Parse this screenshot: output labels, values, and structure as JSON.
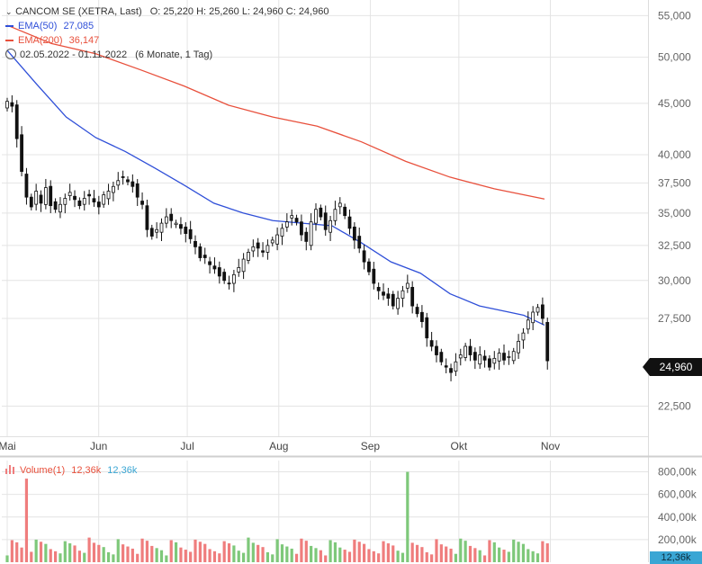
{
  "header": {
    "instrument": "CANCOM SE (XETRA, Last)",
    "ohlc": "O: 25,220  H: 25,260  L: 24,960  C: 24,960",
    "ema50_label": "EMA(50)",
    "ema50_value": "27,085",
    "ema200_label": "EMA(200)",
    "ema200_value": "36,147",
    "period": "02.05.2022 - 01.11.2022",
    "period_detail": "(6 Monate, 1 Tag)"
  },
  "volume_header": {
    "label": "Volume(1)",
    "value1": "12,36k",
    "value2": "12,36k"
  },
  "price_tag": "24,960",
  "volume_tag": "12,36k",
  "colors": {
    "up": "#ffffff",
    "down": "#111111",
    "ema50": "#2f4fd8",
    "ema200": "#e8503c",
    "vol_up": "#7ec87a",
    "vol_down": "#ef7d7d",
    "grid": "#e4e4e4",
    "vol_value2": "#3aa6d4"
  },
  "chart_data": [
    {
      "type": "candlestick",
      "title": "CANCOM SE (XETRA, Last)",
      "scale": "log",
      "ylim": [
        21000,
        57000
      ],
      "x_months": [
        "Mai",
        "Jun",
        "Jul",
        "Aug",
        "Sep",
        "Okt",
        "Nov"
      ],
      "x_month_days": [
        0,
        31,
        61,
        92,
        123,
        153,
        184
      ],
      "y_ticks": [
        22500,
        27500,
        30000,
        32500,
        35000,
        37500,
        40000,
        45000,
        50000,
        55000
      ],
      "y_tick_labels": [
        "22,500",
        "27,500",
        "30,000",
        "32,500",
        "35,000",
        "37,500",
        "40,000",
        "45,000",
        "50,000",
        "55,000"
      ],
      "closes": [
        45200,
        44700,
        41500,
        38500,
        36300,
        35500,
        36800,
        35800,
        37100,
        35600,
        35300,
        35700,
        36200,
        36700,
        36100,
        35600,
        36200,
        36400,
        35900,
        35500,
        36500,
        36800,
        37200,
        37700,
        38000,
        37600,
        37200,
        36300,
        35700,
        33700,
        33200,
        33700,
        34200,
        34700,
        34400,
        34200,
        33800,
        33400,
        33000,
        32400,
        31600,
        31600,
        31100,
        30800,
        30300,
        30000,
        29800,
        30400,
        30900,
        31500,
        32000,
        32400,
        32300,
        32000,
        32500,
        32900,
        33300,
        33800,
        34300,
        34800,
        34300,
        33300,
        32800,
        34300,
        35300,
        34700,
        33700,
        34400,
        35300,
        35800,
        34800,
        33800,
        32900,
        32300,
        31300,
        30600,
        29800,
        29300,
        29000,
        28800,
        28300,
        28800,
        29300,
        29800,
        28300,
        27800,
        27300,
        26300,
        25800,
        25300,
        24900,
        24600,
        24300,
        24900,
        25300,
        25800,
        25300,
        25000,
        25300,
        25000,
        24600,
        25100,
        25400,
        25000,
        25200,
        25500,
        26100,
        26600,
        27400,
        27900,
        28200,
        27500,
        24960
      ],
      "ema50": {
        "name": "EMA(50)",
        "points": [
          [
            0,
            50800
          ],
          [
            10,
            47000
          ],
          [
            20,
            43600
          ],
          [
            30,
            41600
          ],
          [
            40,
            40300
          ],
          [
            50,
            38800
          ],
          [
            60,
            37300
          ],
          [
            70,
            35800
          ],
          [
            80,
            35000
          ],
          [
            90,
            34400
          ],
          [
            100,
            34200
          ],
          [
            110,
            34000
          ],
          [
            120,
            32700
          ],
          [
            130,
            31300
          ],
          [
            140,
            30500
          ],
          [
            150,
            29100
          ],
          [
            160,
            28300
          ],
          [
            170,
            27900
          ],
          [
            175,
            27700
          ],
          [
            182,
            27085
          ]
        ]
      },
      "ema200": {
        "name": "EMA(200)",
        "points": [
          [
            0,
            53800
          ],
          [
            15,
            51600
          ],
          [
            30,
            50400
          ],
          [
            45,
            48600
          ],
          [
            60,
            46800
          ],
          [
            75,
            44800
          ],
          [
            90,
            43600
          ],
          [
            105,
            42700
          ],
          [
            120,
            41200
          ],
          [
            135,
            39400
          ],
          [
            150,
            38000
          ],
          [
            165,
            37000
          ],
          [
            182,
            36147
          ]
        ]
      }
    },
    {
      "type": "bar",
      "title": "Volume(1)",
      "ylim": [
        0,
        900000
      ],
      "y_ticks": [
        200000,
        400000,
        600000,
        800000
      ],
      "y_tick_labels": [
        "200,00k",
        "400,00k",
        "600,00k",
        "800,00k"
      ],
      "spike_days": [
        [
          6,
          740000
        ],
        [
          135,
          800000
        ]
      ]
    }
  ]
}
